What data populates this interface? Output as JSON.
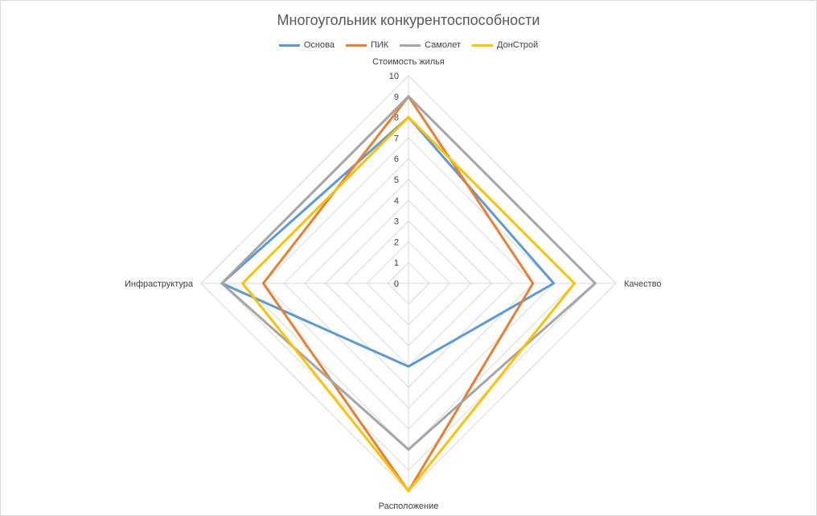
{
  "chart_data": {
    "type": "radar",
    "title": "Многоугольник конкурентоспособности",
    "categories": [
      "Стоимость жилья",
      "Качество",
      "Расположение",
      "Инфраструктура"
    ],
    "rlim": [
      0,
      10
    ],
    "ticks": [
      "0",
      "1",
      "2",
      "3",
      "4",
      "5",
      "6",
      "7",
      "8",
      "9",
      "10"
    ],
    "grid": true,
    "legend_position": "top",
    "series": [
      {
        "name": "Основа",
        "color": "#5b9bd5",
        "values": [
          8,
          7,
          4,
          9
        ]
      },
      {
        "name": "ПИК",
        "color": "#ed7d31",
        "values": [
          9,
          6,
          10,
          7
        ]
      },
      {
        "name": "Самолет",
        "color": "#a5a5a5",
        "values": [
          9,
          9,
          8,
          9
        ]
      },
      {
        "name": "ДонСтрой",
        "color": "#ffc000",
        "values": [
          8,
          8,
          10,
          8
        ]
      }
    ]
  }
}
